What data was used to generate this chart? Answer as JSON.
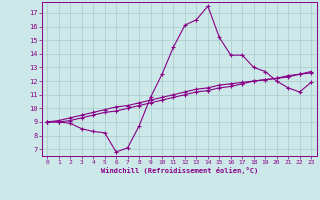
{
  "xlabel": "Windchill (Refroidissement éolien,°C)",
  "xlim": [
    -0.5,
    23.5
  ],
  "ylim": [
    6.5,
    17.8
  ],
  "xticks": [
    0,
    1,
    2,
    3,
    4,
    5,
    6,
    7,
    8,
    9,
    10,
    11,
    12,
    13,
    14,
    15,
    16,
    17,
    18,
    19,
    20,
    21,
    22,
    23
  ],
  "yticks": [
    7,
    8,
    9,
    10,
    11,
    12,
    13,
    14,
    15,
    16,
    17
  ],
  "bg_color": "#cce8e8",
  "line_color": "#880088",
  "grid_color": "#aacccc",
  "line1_x": [
    0,
    1,
    2,
    3,
    4,
    5,
    6,
    7,
    8,
    9,
    10,
    11,
    12,
    13,
    14,
    15,
    16,
    17,
    18,
    19,
    20,
    21,
    22,
    23
  ],
  "line1_y": [
    9.0,
    9.0,
    8.9,
    8.5,
    8.3,
    8.2,
    6.8,
    7.1,
    8.7,
    10.8,
    12.5,
    14.5,
    16.1,
    16.5,
    17.5,
    15.2,
    13.9,
    13.9,
    13.0,
    12.7,
    12.0,
    11.5,
    11.2,
    11.9
  ],
  "line2_x": [
    0,
    1,
    2,
    3,
    4,
    5,
    6,
    7,
    8,
    9,
    10,
    11,
    12,
    13,
    14,
    15,
    16,
    17,
    18,
    19,
    20,
    21,
    22,
    23
  ],
  "line2_y": [
    9.0,
    9.0,
    9.1,
    9.3,
    9.5,
    9.7,
    9.8,
    10.0,
    10.2,
    10.4,
    10.6,
    10.8,
    11.0,
    11.2,
    11.3,
    11.5,
    11.6,
    11.8,
    12.0,
    12.1,
    12.2,
    12.3,
    12.5,
    12.6
  ],
  "line3_x": [
    0,
    1,
    2,
    3,
    4,
    5,
    6,
    7,
    8,
    9,
    10,
    11,
    12,
    13,
    14,
    15,
    16,
    17,
    18,
    19,
    20,
    21,
    22,
    23
  ],
  "line3_y": [
    9.0,
    9.1,
    9.3,
    9.5,
    9.7,
    9.9,
    10.1,
    10.2,
    10.4,
    10.6,
    10.8,
    11.0,
    11.2,
    11.4,
    11.5,
    11.7,
    11.8,
    11.9,
    12.0,
    12.1,
    12.2,
    12.4,
    12.5,
    12.7
  ]
}
